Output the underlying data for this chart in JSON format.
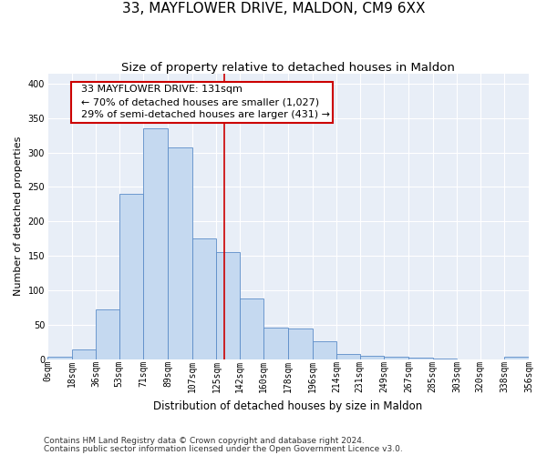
{
  "title": "33, MAYFLOWER DRIVE, MALDON, CM9 6XX",
  "subtitle": "Size of property relative to detached houses in Maldon",
  "xlabel": "Distribution of detached houses by size in Maldon",
  "ylabel": "Number of detached properties",
  "footnote1": "Contains HM Land Registry data © Crown copyright and database right 2024.",
  "footnote2": "Contains public sector information licensed under the Open Government Licence v3.0.",
  "bar_edges": [
    0,
    18,
    36,
    53,
    71,
    89,
    107,
    125,
    142,
    160,
    178,
    196,
    214,
    231,
    249,
    267,
    285,
    303,
    320,
    338,
    356
  ],
  "bar_heights": [
    3,
    14,
    72,
    240,
    335,
    307,
    175,
    155,
    88,
    46,
    44,
    26,
    7,
    5,
    4,
    2,
    1,
    0,
    0,
    3
  ],
  "bar_color": "#c5d9f0",
  "bar_edgecolor": "#5b8cc8",
  "property_line_x": 131,
  "property_line_color": "#cc0000",
  "annotation_text": "  33 MAYFLOWER DRIVE: 131sqm\n  ← 70% of detached houses are smaller (1,027)\n  29% of semi-detached houses are larger (431) →",
  "annotation_box_edgecolor": "#cc0000",
  "annotation_box_facecolor": "#ffffff",
  "ylim": [
    0,
    415
  ],
  "yticks": [
    0,
    50,
    100,
    150,
    200,
    250,
    300,
    350,
    400
  ],
  "tick_labels": [
    "0sqm",
    "18sqm",
    "36sqm",
    "53sqm",
    "71sqm",
    "89sqm",
    "107sqm",
    "125sqm",
    "142sqm",
    "160sqm",
    "178sqm",
    "196sqm",
    "214sqm",
    "231sqm",
    "249sqm",
    "267sqm",
    "285sqm",
    "303sqm",
    "320sqm",
    "338sqm",
    "356sqm"
  ],
  "bg_color": "#e8eef7",
  "grid_color": "#ffffff",
  "title_fontsize": 11,
  "subtitle_fontsize": 9.5,
  "ylabel_fontsize": 8,
  "xlabel_fontsize": 8.5,
  "tick_fontsize": 7,
  "annot_fontsize": 8,
  "footnote_fontsize": 6.5
}
